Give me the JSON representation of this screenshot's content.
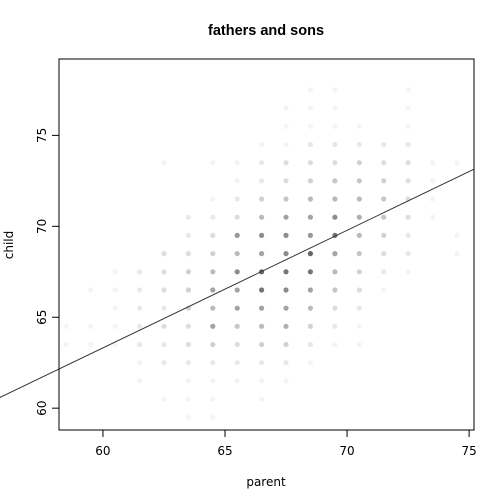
{
  "chart_data": {
    "type": "scatter",
    "title": "fathers and sons",
    "xlabel": "parent",
    "ylabel": "child",
    "xlim": [
      58.2,
      75.2
    ],
    "ylim": [
      58.8,
      79.2
    ],
    "x_ticks": [
      60,
      65,
      70,
      75
    ],
    "y_ticks": [
      60,
      65,
      70,
      75
    ],
    "grid": false,
    "legend": "none",
    "point_color": "#000000",
    "fit_line": {
      "intercept": 24.54,
      "slope": 0.6463,
      "color": "#333333"
    },
    "series": [
      {
        "values": [
          {
            "x": 58.5,
            "y": 64.5,
            "n": 1
          },
          {
            "x": 58.5,
            "y": 63.5,
            "n": 1
          },
          {
            "x": 59.5,
            "y": 66.5,
            "n": 1
          },
          {
            "x": 59.5,
            "y": 64.5,
            "n": 1
          },
          {
            "x": 59.5,
            "y": 63.5,
            "n": 1
          },
          {
            "x": 60.5,
            "y": 67.5,
            "n": 1
          },
          {
            "x": 60.5,
            "y": 66.5,
            "n": 1
          },
          {
            "x": 60.5,
            "y": 65.5,
            "n": 1
          },
          {
            "x": 60.5,
            "y": 64.5,
            "n": 1
          },
          {
            "x": 60.5,
            "y": 63.5,
            "n": 1
          },
          {
            "x": 61.5,
            "y": 67.5,
            "n": 2
          },
          {
            "x": 61.5,
            "y": 66.5,
            "n": 2
          },
          {
            "x": 61.5,
            "y": 65.5,
            "n": 2
          },
          {
            "x": 61.5,
            "y": 64.5,
            "n": 2
          },
          {
            "x": 61.5,
            "y": 63.5,
            "n": 2
          },
          {
            "x": 61.5,
            "y": 62.5,
            "n": 1
          },
          {
            "x": 61.5,
            "y": 61.5,
            "n": 1
          },
          {
            "x": 62.5,
            "y": 68.5,
            "n": 3
          },
          {
            "x": 62.5,
            "y": 67.5,
            "n": 3
          },
          {
            "x": 62.5,
            "y": 66.5,
            "n": 3
          },
          {
            "x": 62.5,
            "y": 65.5,
            "n": 2
          },
          {
            "x": 62.5,
            "y": 64.5,
            "n": 3
          },
          {
            "x": 62.5,
            "y": 63.5,
            "n": 2
          },
          {
            "x": 62.5,
            "y": 62.5,
            "n": 2
          },
          {
            "x": 62.5,
            "y": 60.5,
            "n": 1
          },
          {
            "x": 62.5,
            "y": 73.5,
            "n": 1
          },
          {
            "x": 63.5,
            "y": 70.5,
            "n": 2
          },
          {
            "x": 63.5,
            "y": 69.5,
            "n": 2
          },
          {
            "x": 63.5,
            "y": 68.5,
            "n": 3
          },
          {
            "x": 63.5,
            "y": 67.5,
            "n": 4
          },
          {
            "x": 63.5,
            "y": 66.5,
            "n": 4
          },
          {
            "x": 63.5,
            "y": 65.5,
            "n": 4
          },
          {
            "x": 63.5,
            "y": 64.5,
            "n": 3
          },
          {
            "x": 63.5,
            "y": 63.5,
            "n": 3
          },
          {
            "x": 63.5,
            "y": 62.5,
            "n": 2
          },
          {
            "x": 63.5,
            "y": 61.5,
            "n": 1
          },
          {
            "x": 63.5,
            "y": 60.5,
            "n": 1
          },
          {
            "x": 63.5,
            "y": 59.5,
            "n": 1
          },
          {
            "x": 64.5,
            "y": 71.5,
            "n": 1
          },
          {
            "x": 64.5,
            "y": 70.5,
            "n": 2
          },
          {
            "x": 64.5,
            "y": 69.5,
            "n": 3
          },
          {
            "x": 64.5,
            "y": 68.5,
            "n": 4
          },
          {
            "x": 64.5,
            "y": 67.5,
            "n": 6
          },
          {
            "x": 64.5,
            "y": 66.5,
            "n": 8
          },
          {
            "x": 64.5,
            "y": 65.5,
            "n": 6
          },
          {
            "x": 64.5,
            "y": 64.5,
            "n": 8
          },
          {
            "x": 64.5,
            "y": 63.5,
            "n": 4
          },
          {
            "x": 64.5,
            "y": 62.5,
            "n": 2
          },
          {
            "x": 64.5,
            "y": 61.5,
            "n": 1
          },
          {
            "x": 64.5,
            "y": 60.5,
            "n": 1
          },
          {
            "x": 64.5,
            "y": 59.5,
            "n": 1
          },
          {
            "x": 64.5,
            "y": 73.5,
            "n": 1
          },
          {
            "x": 65.5,
            "y": 73.5,
            "n": 1
          },
          {
            "x": 65.5,
            "y": 72.5,
            "n": 1
          },
          {
            "x": 65.5,
            "y": 71.5,
            "n": 2
          },
          {
            "x": 65.5,
            "y": 70.5,
            "n": 3
          },
          {
            "x": 65.5,
            "y": 69.5,
            "n": 9
          },
          {
            "x": 65.5,
            "y": 68.5,
            "n": 6
          },
          {
            "x": 65.5,
            "y": 67.5,
            "n": 10
          },
          {
            "x": 65.5,
            "y": 66.5,
            "n": 8
          },
          {
            "x": 65.5,
            "y": 65.5,
            "n": 8
          },
          {
            "x": 65.5,
            "y": 64.5,
            "n": 5
          },
          {
            "x": 65.5,
            "y": 63.5,
            "n": 3
          },
          {
            "x": 65.5,
            "y": 62.5,
            "n": 2
          },
          {
            "x": 65.5,
            "y": 61.5,
            "n": 1
          },
          {
            "x": 66.5,
            "y": 74.5,
            "n": 1
          },
          {
            "x": 66.5,
            "y": 73.5,
            "n": 2
          },
          {
            "x": 66.5,
            "y": 72.5,
            "n": 2
          },
          {
            "x": 66.5,
            "y": 71.5,
            "n": 4
          },
          {
            "x": 66.5,
            "y": 70.5,
            "n": 6
          },
          {
            "x": 66.5,
            "y": 69.5,
            "n": 10
          },
          {
            "x": 66.5,
            "y": 68.5,
            "n": 8
          },
          {
            "x": 66.5,
            "y": 67.5,
            "n": 14
          },
          {
            "x": 66.5,
            "y": 66.5,
            "n": 12
          },
          {
            "x": 66.5,
            "y": 65.5,
            "n": 8
          },
          {
            "x": 66.5,
            "y": 64.5,
            "n": 6
          },
          {
            "x": 66.5,
            "y": 63.5,
            "n": 4
          },
          {
            "x": 66.5,
            "y": 62.5,
            "n": 2
          },
          {
            "x": 66.5,
            "y": 61.5,
            "n": 1
          },
          {
            "x": 66.5,
            "y": 60.5,
            "n": 1
          },
          {
            "x": 67.5,
            "y": 76.5,
            "n": 1
          },
          {
            "x": 67.5,
            "y": 75.5,
            "n": 1
          },
          {
            "x": 67.5,
            "y": 74.5,
            "n": 1
          },
          {
            "x": 67.5,
            "y": 73.5,
            "n": 3
          },
          {
            "x": 67.5,
            "y": 72.5,
            "n": 3
          },
          {
            "x": 67.5,
            "y": 71.5,
            "n": 5
          },
          {
            "x": 67.5,
            "y": 70.5,
            "n": 8
          },
          {
            "x": 67.5,
            "y": 69.5,
            "n": 10
          },
          {
            "x": 67.5,
            "y": 68.5,
            "n": 10
          },
          {
            "x": 67.5,
            "y": 67.5,
            "n": 12
          },
          {
            "x": 67.5,
            "y": 66.5,
            "n": 10
          },
          {
            "x": 67.5,
            "y": 65.5,
            "n": 8
          },
          {
            "x": 67.5,
            "y": 64.5,
            "n": 7
          },
          {
            "x": 67.5,
            "y": 63.5,
            "n": 4
          },
          {
            "x": 67.5,
            "y": 62.5,
            "n": 2
          },
          {
            "x": 67.5,
            "y": 61.5,
            "n": 1
          },
          {
            "x": 68.5,
            "y": 77.5,
            "n": 1
          },
          {
            "x": 68.5,
            "y": 76.5,
            "n": 1
          },
          {
            "x": 68.5,
            "y": 75.5,
            "n": 1
          },
          {
            "x": 68.5,
            "y": 74.5,
            "n": 2
          },
          {
            "x": 68.5,
            "y": 73.5,
            "n": 3
          },
          {
            "x": 68.5,
            "y": 72.5,
            "n": 4
          },
          {
            "x": 68.5,
            "y": 71.5,
            "n": 6
          },
          {
            "x": 68.5,
            "y": 70.5,
            "n": 8
          },
          {
            "x": 68.5,
            "y": 69.5,
            "n": 9
          },
          {
            "x": 68.5,
            "y": 68.5,
            "n": 14
          },
          {
            "x": 68.5,
            "y": 67.5,
            "n": 12
          },
          {
            "x": 68.5,
            "y": 66.5,
            "n": 8
          },
          {
            "x": 68.5,
            "y": 65.5,
            "n": 6
          },
          {
            "x": 68.5,
            "y": 64.5,
            "n": 4
          },
          {
            "x": 68.5,
            "y": 63.5,
            "n": 2
          },
          {
            "x": 68.5,
            "y": 62.5,
            "n": 1
          },
          {
            "x": 69.5,
            "y": 77.5,
            "n": 1
          },
          {
            "x": 69.5,
            "y": 76.5,
            "n": 1
          },
          {
            "x": 69.5,
            "y": 75.5,
            "n": 1
          },
          {
            "x": 69.5,
            "y": 74.5,
            "n": 2
          },
          {
            "x": 69.5,
            "y": 73.5,
            "n": 3
          },
          {
            "x": 69.5,
            "y": 72.5,
            "n": 5
          },
          {
            "x": 69.5,
            "y": 71.5,
            "n": 6
          },
          {
            "x": 69.5,
            "y": 70.5,
            "n": 10
          },
          {
            "x": 69.5,
            "y": 69.5,
            "n": 12
          },
          {
            "x": 69.5,
            "y": 68.5,
            "n": 8
          },
          {
            "x": 69.5,
            "y": 67.5,
            "n": 6
          },
          {
            "x": 69.5,
            "y": 66.5,
            "n": 5
          },
          {
            "x": 69.5,
            "y": 65.5,
            "n": 3
          },
          {
            "x": 69.5,
            "y": 64.5,
            "n": 2
          },
          {
            "x": 69.5,
            "y": 63.5,
            "n": 1
          },
          {
            "x": 70.5,
            "y": 75.5,
            "n": 1
          },
          {
            "x": 70.5,
            "y": 74.5,
            "n": 2
          },
          {
            "x": 70.5,
            "y": 73.5,
            "n": 4
          },
          {
            "x": 70.5,
            "y": 72.5,
            "n": 5
          },
          {
            "x": 70.5,
            "y": 71.5,
            "n": 6
          },
          {
            "x": 70.5,
            "y": 70.5,
            "n": 7
          },
          {
            "x": 70.5,
            "y": 69.5,
            "n": 6
          },
          {
            "x": 70.5,
            "y": 68.5,
            "n": 5
          },
          {
            "x": 70.5,
            "y": 67.5,
            "n": 4
          },
          {
            "x": 70.5,
            "y": 66.5,
            "n": 3
          },
          {
            "x": 70.5,
            "y": 65.5,
            "n": 2
          },
          {
            "x": 70.5,
            "y": 64.5,
            "n": 1
          },
          {
            "x": 70.5,
            "y": 63.5,
            "n": 1
          },
          {
            "x": 71.5,
            "y": 74.5,
            "n": 2
          },
          {
            "x": 71.5,
            "y": 73.5,
            "n": 3
          },
          {
            "x": 71.5,
            "y": 72.5,
            "n": 4
          },
          {
            "x": 71.5,
            "y": 71.5,
            "n": 5
          },
          {
            "x": 71.5,
            "y": 70.5,
            "n": 5
          },
          {
            "x": 71.5,
            "y": 69.5,
            "n": 4
          },
          {
            "x": 71.5,
            "y": 68.5,
            "n": 3
          },
          {
            "x": 71.5,
            "y": 67.5,
            "n": 2
          },
          {
            "x": 71.5,
            "y": 66.5,
            "n": 1
          },
          {
            "x": 72.5,
            "y": 77.5,
            "n": 1
          },
          {
            "x": 72.5,
            "y": 76.5,
            "n": 1
          },
          {
            "x": 72.5,
            "y": 75.5,
            "n": 1
          },
          {
            "x": 72.5,
            "y": 74.5,
            "n": 2
          },
          {
            "x": 72.5,
            "y": 73.5,
            "n": 3
          },
          {
            "x": 72.5,
            "y": 72.5,
            "n": 3
          },
          {
            "x": 72.5,
            "y": 71.5,
            "n": 3
          },
          {
            "x": 72.5,
            "y": 70.5,
            "n": 3
          },
          {
            "x": 72.5,
            "y": 69.5,
            "n": 2
          },
          {
            "x": 72.5,
            "y": 68.5,
            "n": 2
          },
          {
            "x": 72.5,
            "y": 67.5,
            "n": 1
          },
          {
            "x": 73.5,
            "y": 73.5,
            "n": 1
          },
          {
            "x": 73.5,
            "y": 72.5,
            "n": 1
          },
          {
            "x": 73.5,
            "y": 71.5,
            "n": 1
          },
          {
            "x": 73.5,
            "y": 70.5,
            "n": 1
          },
          {
            "x": 74.5,
            "y": 73.5,
            "n": 1
          },
          {
            "x": 74.5,
            "y": 69.5,
            "n": 1
          },
          {
            "x": 74.5,
            "y": 68.5,
            "n": 1
          }
        ]
      }
    ]
  }
}
